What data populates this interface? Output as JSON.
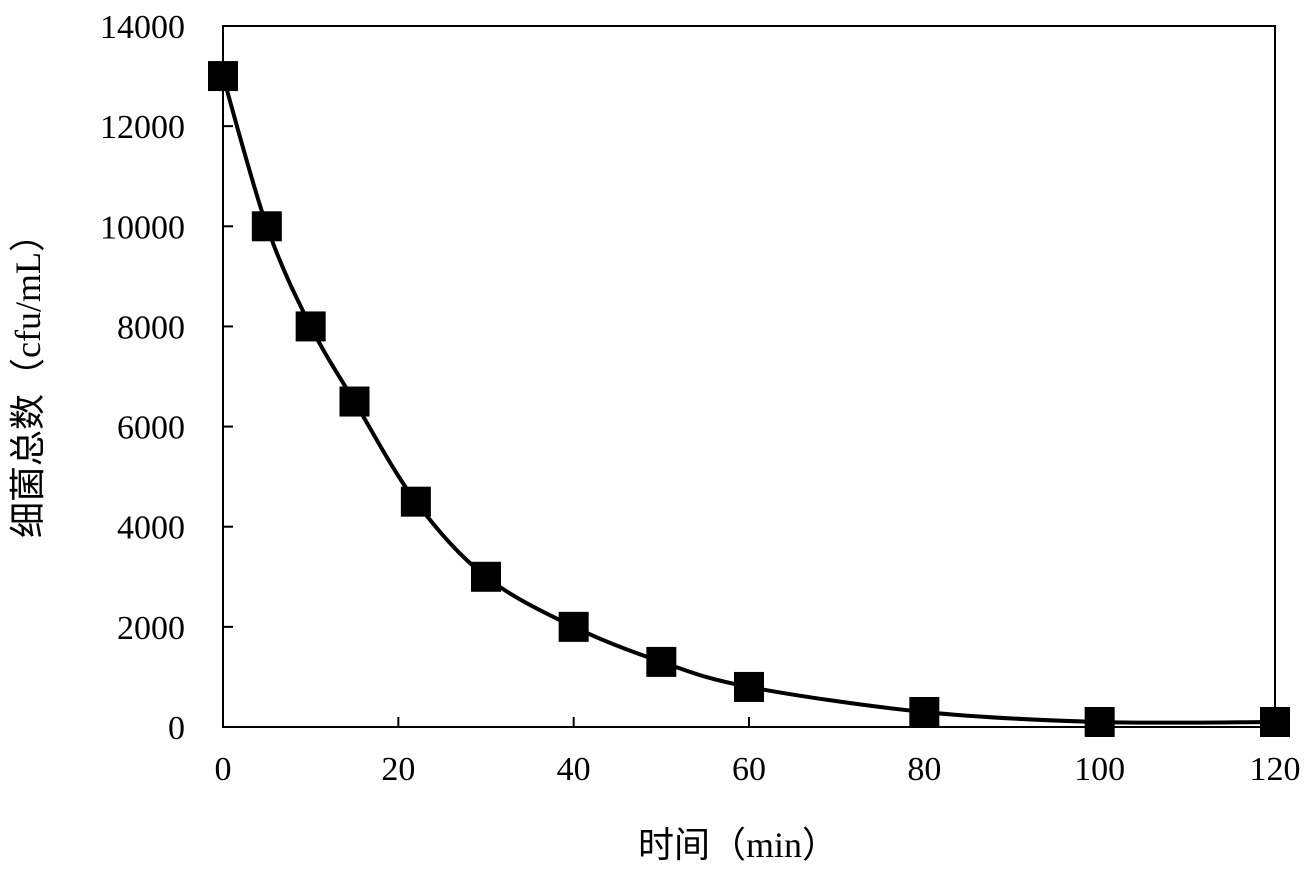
{
  "chart_data": {
    "type": "line",
    "title": "",
    "xlabel": "时间（min）",
    "ylabel": "细菌总数（cfu/mL）",
    "xlim": [
      0,
      120
    ],
    "ylim": [
      0,
      14000
    ],
    "x_ticks": [
      0,
      20,
      40,
      60,
      80,
      100,
      120
    ],
    "y_ticks": [
      0,
      2000,
      4000,
      6000,
      8000,
      10000,
      12000,
      14000
    ],
    "grid": false,
    "legend": "none",
    "marker": "square",
    "smooth_line": true,
    "series": [
      {
        "x": [
          0,
          5,
          10,
          15,
          22,
          30,
          40,
          50,
          60,
          80,
          100,
          120
        ],
        "y": [
          13000,
          10000,
          8000,
          6500,
          4500,
          3000,
          2000,
          1300,
          800,
          300,
          100,
          100
        ],
        "color": "#000000"
      }
    ]
  }
}
